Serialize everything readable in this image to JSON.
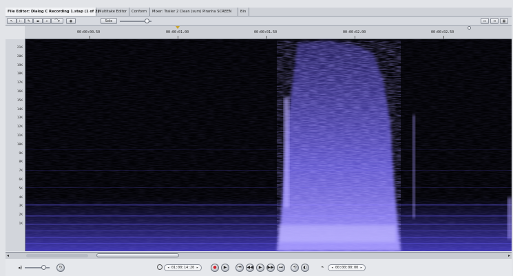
{
  "tabs": [
    {
      "label": "File Editor: Dialog C Recording 1.stap (1 of 2)",
      "active": true
    },
    {
      "label": "Multitake Editor",
      "active": false
    },
    {
      "label": "Conform",
      "active": false
    },
    {
      "label": "Mixer: Trailer 2 Clean (sum) Piranha SCREEN",
      "active": false
    },
    {
      "label": "Bin",
      "active": false
    }
  ],
  "toolbar": {
    "solo_label": "Solo"
  },
  "ruler": {
    "ticks": [
      "00:00:00.50",
      "00:00:01.00",
      "00:00:01.50",
      "00:00:02.00",
      "00:00:02.50"
    ]
  },
  "frequency_axis": {
    "labels": [
      "21K",
      "20K",
      "19K",
      "18K",
      "17K",
      "16K",
      "15K",
      "14K",
      "13K",
      "12K",
      "11K",
      "10K",
      "9K",
      "8K",
      "7K",
      "6K",
      "5K",
      "4K",
      "3K",
      "2K",
      "1K"
    ]
  },
  "transport": {
    "current_timecode": "01:00:14:20",
    "duration_timecode": "00:00:00:00"
  },
  "colors": {
    "spectrum": "#6a5cff",
    "background": "#020205"
  }
}
